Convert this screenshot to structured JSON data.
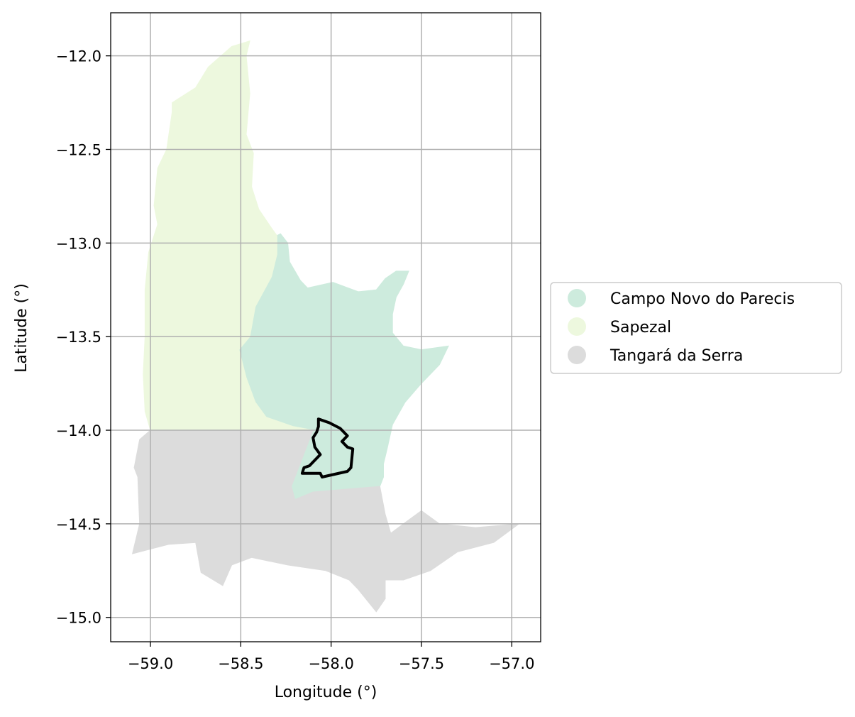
{
  "chart_data": {
    "type": "map",
    "xlabel": "Longitude (°)",
    "ylabel": "Latitude (°)",
    "xlim": [
      -59.22,
      -56.84
    ],
    "ylim": [
      -15.13,
      -11.77
    ],
    "x_ticks": [
      -59.0,
      -58.5,
      -58.0,
      -57.5,
      -57.0
    ],
    "y_ticks": [
      -12.0,
      -12.5,
      -13.0,
      -13.5,
      -14.0,
      -14.5,
      -15.0
    ],
    "x_tick_labels": [
      "−59.0",
      "−58.5",
      "−58.0",
      "−57.5",
      "−57.0"
    ],
    "y_tick_labels": [
      "−12.0",
      "−12.5",
      "−13.0",
      "−13.5",
      "−14.0",
      "−14.5",
      "−15.0"
    ],
    "grid": true,
    "legend_position": "right-outside",
    "regions": [
      {
        "name": "Campo Novo do Parecis",
        "color": "#cdebdd",
        "polygon": [
          [
            -58.28,
            -12.95
          ],
          [
            -58.24,
            -13.0
          ],
          [
            -58.23,
            -13.1
          ],
          [
            -58.17,
            -13.2
          ],
          [
            -58.13,
            -13.24
          ],
          [
            -57.99,
            -13.21
          ],
          [
            -57.85,
            -13.26
          ],
          [
            -57.75,
            -13.25
          ],
          [
            -57.7,
            -13.19
          ],
          [
            -57.64,
            -13.15
          ],
          [
            -57.57,
            -13.15
          ],
          [
            -57.6,
            -13.22
          ],
          [
            -57.64,
            -13.29
          ],
          [
            -57.66,
            -13.38
          ],
          [
            -57.66,
            -13.48
          ],
          [
            -57.6,
            -13.55
          ],
          [
            -57.5,
            -13.57
          ],
          [
            -57.35,
            -13.55
          ],
          [
            -57.4,
            -13.65
          ],
          [
            -57.5,
            -13.75
          ],
          [
            -57.59,
            -13.85
          ],
          [
            -57.66,
            -13.97
          ],
          [
            -57.69,
            -14.1
          ],
          [
            -57.71,
            -14.18
          ],
          [
            -57.71,
            -14.25
          ],
          [
            -57.73,
            -14.3
          ],
          [
            -58.1,
            -14.33
          ],
          [
            -58.2,
            -14.37
          ],
          [
            -58.22,
            -14.3
          ],
          [
            -58.1,
            -14.0
          ],
          [
            -58.21,
            -13.98
          ],
          [
            -58.36,
            -13.93
          ],
          [
            -58.42,
            -13.85
          ],
          [
            -58.47,
            -13.72
          ],
          [
            -58.51,
            -13.57
          ],
          [
            -58.45,
            -13.5
          ],
          [
            -58.42,
            -13.34
          ],
          [
            -58.33,
            -13.18
          ],
          [
            -58.3,
            -13.06
          ],
          [
            -58.3,
            -12.96
          ]
        ]
      },
      {
        "name": "Sapezal",
        "color": "#edf8de",
        "polygon": [
          [
            -58.45,
            -11.92
          ],
          [
            -58.47,
            -12.0
          ],
          [
            -58.45,
            -12.2
          ],
          [
            -58.47,
            -12.42
          ],
          [
            -58.43,
            -12.52
          ],
          [
            -58.44,
            -12.7
          ],
          [
            -58.4,
            -12.82
          ],
          [
            -58.33,
            -12.92
          ],
          [
            -58.3,
            -12.96
          ],
          [
            -58.3,
            -13.06
          ],
          [
            -58.33,
            -13.18
          ],
          [
            -58.42,
            -13.34
          ],
          [
            -58.45,
            -13.5
          ],
          [
            -58.51,
            -13.57
          ],
          [
            -58.47,
            -13.72
          ],
          [
            -58.42,
            -13.85
          ],
          [
            -58.36,
            -13.93
          ],
          [
            -58.21,
            -13.98
          ],
          [
            -58.1,
            -14.0
          ],
          [
            -59.0,
            -14.0
          ],
          [
            -59.03,
            -13.9
          ],
          [
            -59.04,
            -13.7
          ],
          [
            -59.03,
            -13.5
          ],
          [
            -59.03,
            -13.25
          ],
          [
            -59.01,
            -13.05
          ],
          [
            -58.96,
            -12.9
          ],
          [
            -58.98,
            -12.8
          ],
          [
            -58.96,
            -12.6
          ],
          [
            -58.91,
            -12.5
          ],
          [
            -58.88,
            -12.3
          ],
          [
            -58.88,
            -12.25
          ],
          [
            -58.75,
            -12.17
          ],
          [
            -58.68,
            -12.06
          ],
          [
            -58.55,
            -11.95
          ]
        ]
      },
      {
        "name": "Tangará da Serra",
        "color": "#dcdcdc",
        "polygon": [
          [
            -59.0,
            -14.0
          ],
          [
            -58.1,
            -14.0
          ],
          [
            -58.22,
            -14.3
          ],
          [
            -58.2,
            -14.37
          ],
          [
            -58.1,
            -14.33
          ],
          [
            -57.73,
            -14.3
          ],
          [
            -57.7,
            -14.45
          ],
          [
            -57.67,
            -14.55
          ],
          [
            -57.6,
            -14.5
          ],
          [
            -57.5,
            -14.43
          ],
          [
            -57.4,
            -14.5
          ],
          [
            -57.2,
            -14.52
          ],
          [
            -56.96,
            -14.5
          ],
          [
            -57.1,
            -14.6
          ],
          [
            -57.3,
            -14.65
          ],
          [
            -57.45,
            -14.75
          ],
          [
            -57.6,
            -14.8
          ],
          [
            -57.7,
            -14.8
          ],
          [
            -57.7,
            -14.9
          ],
          [
            -57.75,
            -14.97
          ],
          [
            -57.85,
            -14.85
          ],
          [
            -57.9,
            -14.8
          ],
          [
            -58.03,
            -14.75
          ],
          [
            -58.24,
            -14.72
          ],
          [
            -58.34,
            -14.7
          ],
          [
            -58.44,
            -14.68
          ],
          [
            -58.55,
            -14.72
          ],
          [
            -58.6,
            -14.83
          ],
          [
            -58.72,
            -14.76
          ],
          [
            -58.75,
            -14.6
          ],
          [
            -58.9,
            -14.61
          ],
          [
            -58.98,
            -14.63
          ],
          [
            -59.1,
            -14.66
          ],
          [
            -59.06,
            -14.5
          ],
          [
            -59.07,
            -14.25
          ],
          [
            -59.09,
            -14.2
          ],
          [
            -59.06,
            -14.05
          ]
        ]
      }
    ],
    "outline": {
      "name": "",
      "color": "#000000",
      "polygon": [
        [
          -58.07,
          -13.94
        ],
        [
          -58.01,
          -13.96
        ],
        [
          -57.95,
          -13.99
        ],
        [
          -57.91,
          -14.03
        ],
        [
          -57.94,
          -14.06
        ],
        [
          -57.91,
          -14.09
        ],
        [
          -57.88,
          -14.1
        ],
        [
          -57.89,
          -14.2
        ],
        [
          -57.91,
          -14.22
        ],
        [
          -58.05,
          -14.25
        ],
        [
          -58.06,
          -14.23
        ],
        [
          -58.16,
          -14.23
        ],
        [
          -58.15,
          -14.2
        ],
        [
          -58.12,
          -14.19
        ],
        [
          -58.09,
          -14.16
        ],
        [
          -58.06,
          -14.13
        ],
        [
          -58.09,
          -14.09
        ],
        [
          -58.1,
          -14.04
        ],
        [
          -58.08,
          -14.01
        ],
        [
          -58.07,
          -13.98
        ]
      ]
    },
    "series": [
      {
        "name": "Campo Novo do Parecis",
        "color": "#cdebdd"
      },
      {
        "name": "Sapezal",
        "color": "#edf8de"
      },
      {
        "name": "Tangará da Serra",
        "color": "#dcdcdc"
      }
    ]
  }
}
